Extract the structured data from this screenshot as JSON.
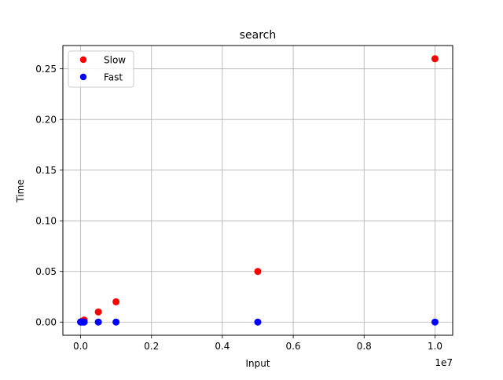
{
  "chart_data": {
    "type": "scatter",
    "title": "search",
    "xlabel": "Input",
    "ylabel": "Time",
    "x_offset_label": "1e7",
    "xlim": [
      -500000,
      10500000
    ],
    "ylim": [
      -0.013,
      0.273
    ],
    "x_scale_factor": 10000000,
    "xticks": [
      0,
      2000000,
      4000000,
      6000000,
      8000000,
      10000000
    ],
    "xtick_labels": [
      "0.0",
      "0.2",
      "0.4",
      "0.6",
      "0.8",
      "1.0"
    ],
    "yticks": [
      0,
      0.05,
      0.1,
      0.15,
      0.2,
      0.25
    ],
    "ytick_labels": [
      "0.00",
      "0.05",
      "0.10",
      "0.15",
      "0.20",
      "0.25"
    ],
    "grid": true,
    "legend_position": "top-left",
    "series": [
      {
        "name": "Slow",
        "color": "#ff0000",
        "points": [
          {
            "x": 1000,
            "y": 0.0002
          },
          {
            "x": 10000,
            "y": 0.0002
          },
          {
            "x": 50000,
            "y": 0.001
          },
          {
            "x": 100000,
            "y": 0.002
          },
          {
            "x": 500000,
            "y": 0.01
          },
          {
            "x": 1000000,
            "y": 0.02
          },
          {
            "x": 5000000,
            "y": 0.05
          },
          {
            "x": 10000000,
            "y": 0.26
          }
        ]
      },
      {
        "name": "Fast",
        "color": "#0000ff",
        "points": [
          {
            "x": 1000,
            "y": 0.0
          },
          {
            "x": 10000,
            "y": 0.0
          },
          {
            "x": 50000,
            "y": 0.0
          },
          {
            "x": 100000,
            "y": 0.0
          },
          {
            "x": 500000,
            "y": 0.0
          },
          {
            "x": 1000000,
            "y": 0.0
          },
          {
            "x": 5000000,
            "y": 0.0
          },
          {
            "x": 10000000,
            "y": 0.0
          }
        ]
      }
    ]
  }
}
